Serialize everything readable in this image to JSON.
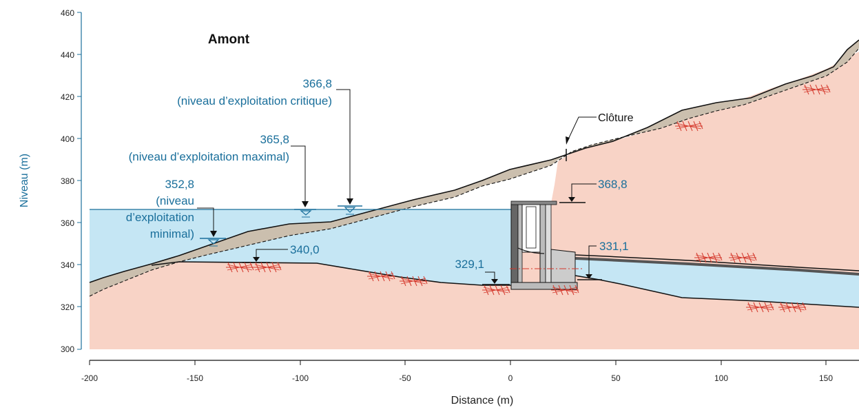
{
  "diagram": {
    "region_label": "Amont",
    "axes": {
      "y": {
        "label": "Niveau (m)",
        "ticks": [
          "300",
          "320",
          "340",
          "360",
          "380",
          "400",
          "420",
          "440",
          "460"
        ]
      },
      "x": {
        "label": "Distance (m)",
        "ticks": [
          "-200",
          "-150",
          "-100",
          "-50",
          "0",
          "50",
          "100",
          "150"
        ]
      }
    },
    "levels": [
      {
        "value": "366,8",
        "desc": [
          "(niveau d’exploitation critique)"
        ]
      },
      {
        "value": "365,8",
        "desc": [
          "(niveau d’exploitation maximal)"
        ]
      },
      {
        "value": "352,8",
        "desc": [
          "(niveau",
          "d’exploitation",
          "minimal)"
        ]
      }
    ],
    "elevation_labels": [
      "340,0",
      "329,1",
      "331,1",
      "368,8"
    ],
    "fence_label": "Clôture",
    "colors": {
      "water": "#c5e6f4",
      "rock": "#f8d3c6",
      "soil": "#cbbfae",
      "hatch": "#d4382c",
      "label": "#1a6f9b",
      "axis": "#1a6f9b"
    }
  }
}
